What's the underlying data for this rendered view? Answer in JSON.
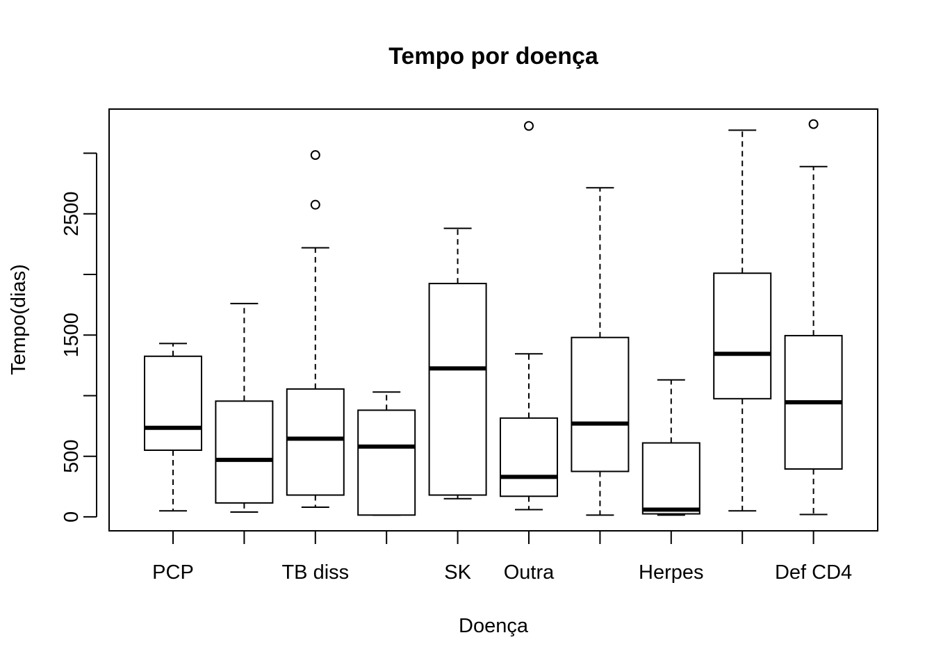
{
  "chart_data": {
    "type": "boxplot",
    "title": "Tempo por doença",
    "xlabel": "Doença",
    "ylabel": "Tempo(dias)",
    "ylim": [
      -115,
      3364
    ],
    "yticks": [
      0,
      500,
      1500,
      2500
    ],
    "y_minor_ticks": [
      1000,
      2000,
      3000
    ],
    "categories": [
      "PCP",
      "",
      "TB diss",
      "",
      "SK",
      "Outra",
      "",
      "Herpes",
      "",
      "Def CD4"
    ],
    "boxes": [
      {
        "category": "PCP",
        "min": 50,
        "q1": 550,
        "median": 735,
        "q3": 1325,
        "max": 1430,
        "outliers": []
      },
      {
        "category": "",
        "min": 40,
        "q1": 115,
        "median": 470,
        "q3": 955,
        "max": 1760,
        "outliers": []
      },
      {
        "category": "TB diss",
        "min": 80,
        "q1": 180,
        "median": 645,
        "q3": 1055,
        "max": 2220,
        "outliers": [
          2575,
          2985
        ]
      },
      {
        "category": "",
        "min": 15,
        "q1": 15,
        "median": 580,
        "q3": 880,
        "max": 1030,
        "outliers": []
      },
      {
        "category": "SK",
        "min": 150,
        "q1": 180,
        "median": 1225,
        "q3": 1925,
        "max": 2380,
        "outliers": []
      },
      {
        "category": "Outra",
        "min": 60,
        "q1": 170,
        "median": 330,
        "q3": 815,
        "max": 1345,
        "outliers": [
          3225
        ]
      },
      {
        "category": "",
        "min": 15,
        "q1": 375,
        "median": 770,
        "q3": 1480,
        "max": 2715,
        "outliers": []
      },
      {
        "category": "Herpes",
        "min": 15,
        "q1": 25,
        "median": 60,
        "q3": 610,
        "max": 1130,
        "outliers": []
      },
      {
        "category": "",
        "min": 50,
        "q1": 975,
        "median": 1345,
        "q3": 2010,
        "max": 3190,
        "outliers": []
      },
      {
        "category": "Def CD4",
        "min": 20,
        "q1": 395,
        "median": 945,
        "q3": 1495,
        "max": 2890,
        "outliers": [
          3240
        ]
      }
    ],
    "grid": false,
    "legend": "none"
  }
}
